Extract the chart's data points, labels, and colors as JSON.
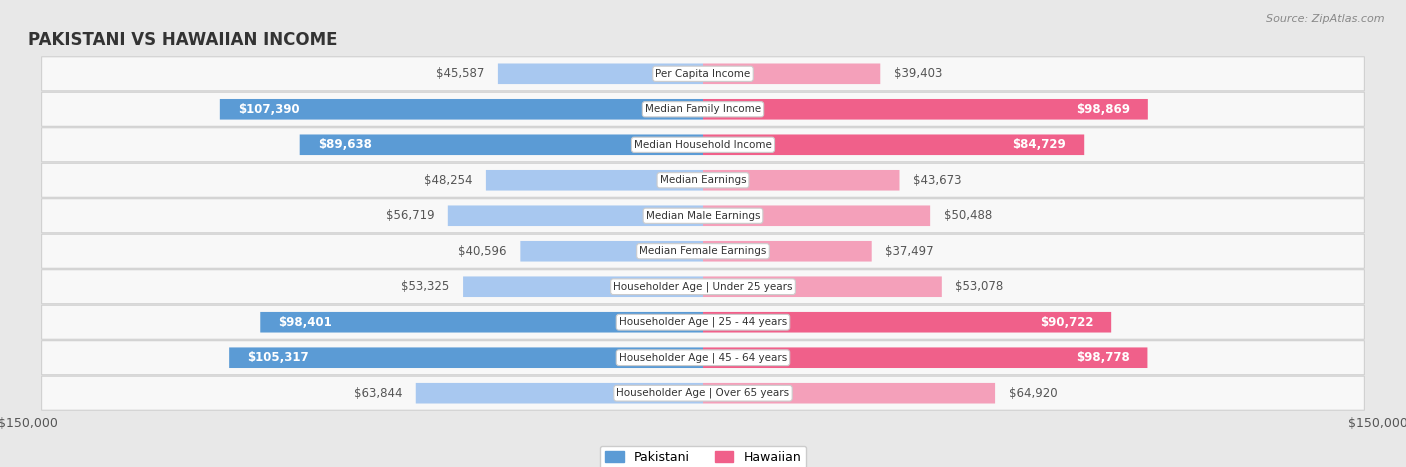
{
  "title": "PAKISTANI VS HAWAIIAN INCOME",
  "source": "Source: ZipAtlas.com",
  "categories": [
    "Per Capita Income",
    "Median Family Income",
    "Median Household Income",
    "Median Earnings",
    "Median Male Earnings",
    "Median Female Earnings",
    "Householder Age | Under 25 years",
    "Householder Age | 25 - 44 years",
    "Householder Age | 45 - 64 years",
    "Householder Age | Over 65 years"
  ],
  "pakistani": [
    45587,
    107390,
    89638,
    48254,
    56719,
    40596,
    53325,
    98401,
    105317,
    63844
  ],
  "hawaiian": [
    39403,
    98869,
    84729,
    43673,
    50488,
    37497,
    53078,
    90722,
    98778,
    64920
  ],
  "max_val": 150000,
  "pakistani_color_light": "#a8c8f0",
  "pakistani_color_dark": "#5b9bd5",
  "hawaiian_color_light": "#f4a0ba",
  "hawaiian_color_dark": "#f0608a",
  "label_threshold": 75000,
  "bar_height": 0.58,
  "background_color": "#e8e8e8",
  "row_bg": "#f8f8f8",
  "row_border": "#d0d0d0",
  "center_label_bg": "#ffffff",
  "center_label_border": "#cccccc",
  "title_color": "#333333",
  "source_color": "#888888",
  "label_dark_color": "#555555",
  "label_white_color": "#ffffff"
}
